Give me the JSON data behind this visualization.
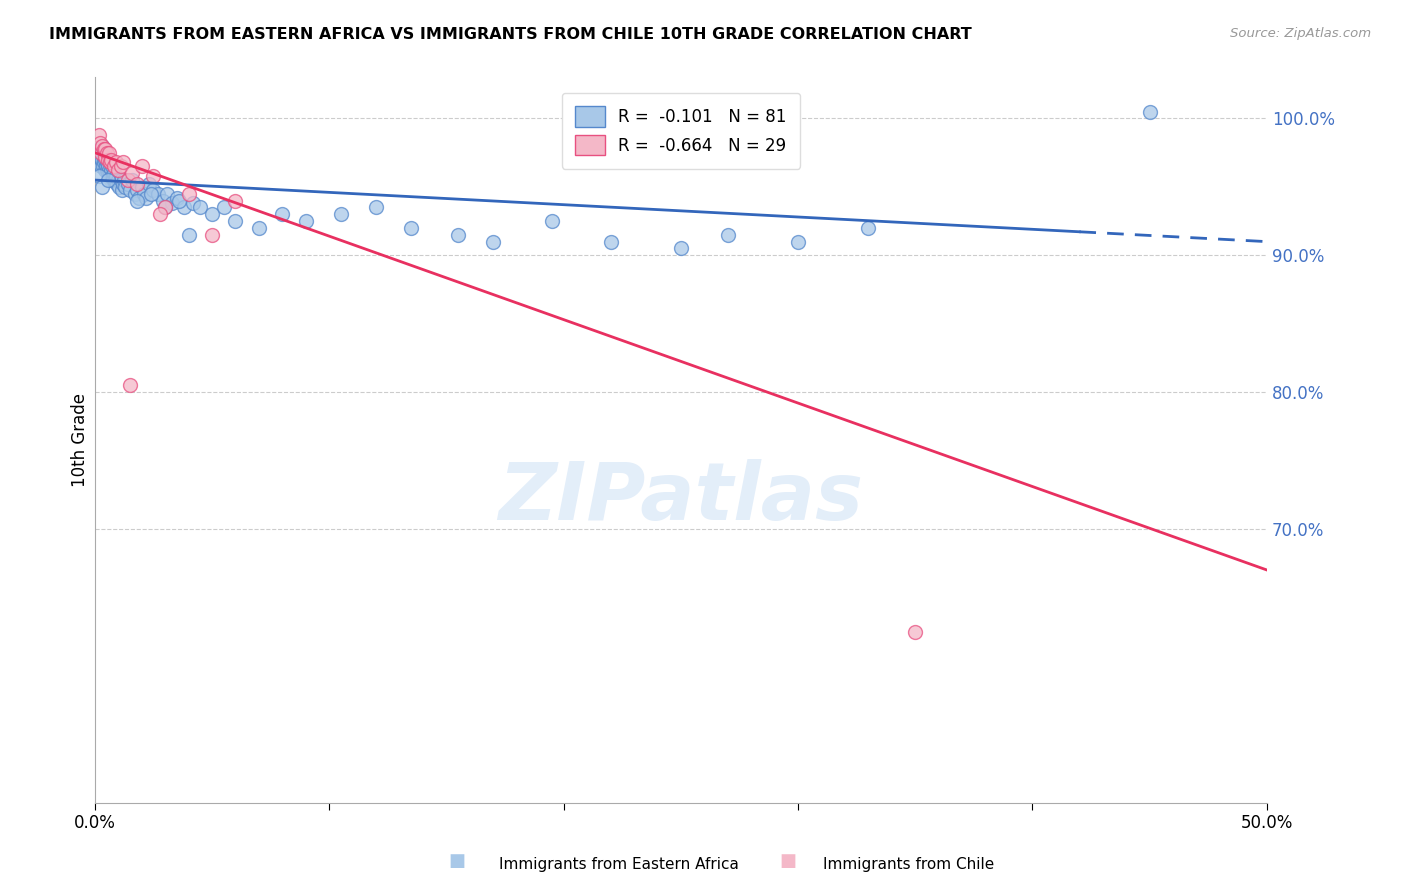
{
  "title": "IMMIGRANTS FROM EASTERN AFRICA VS IMMIGRANTS FROM CHILE 10TH GRADE CORRELATION CHART",
  "source": "Source: ZipAtlas.com",
  "ylabel": "10th Grade",
  "xmin": 0.0,
  "xmax": 50.0,
  "ymin": 50.0,
  "ymax": 103.0,
  "yticks": [
    100.0,
    90.0,
    80.0,
    70.0
  ],
  "ytick_labels": [
    "100.0%",
    "90.0%",
    "80.0%",
    "70.0%"
  ],
  "xticks": [
    0.0,
    10.0,
    20.0,
    30.0,
    40.0,
    50.0
  ],
  "xtick_labels": [
    "0.0%",
    "",
    "",
    "",
    "",
    "50.0%"
  ],
  "blue_color": "#a8c8e8",
  "pink_color": "#f4b8c8",
  "blue_edge_color": "#5588cc",
  "pink_edge_color": "#e85080",
  "blue_line_color": "#3366bb",
  "pink_line_color": "#e83060",
  "legend_blue_r": "-0.101",
  "legend_blue_n": "81",
  "legend_pink_r": "-0.664",
  "legend_pink_n": "29",
  "legend_label_blue": "Immigrants from Eastern Africa",
  "legend_label_pink": "Immigrants from Chile",
  "watermark": "ZIPatlas",
  "blue_line_x0": 0.0,
  "blue_line_y0": 95.5,
  "blue_line_x1": 50.0,
  "blue_line_y1": 91.0,
  "blue_dash_start": 42.0,
  "pink_line_x0": 0.0,
  "pink_line_y0": 97.5,
  "pink_line_x1": 50.0,
  "pink_line_y1": 67.0,
  "blue_scatter_x": [
    0.15,
    0.18,
    0.22,
    0.25,
    0.28,
    0.3,
    0.32,
    0.35,
    0.38,
    0.4,
    0.42,
    0.45,
    0.48,
    0.5,
    0.52,
    0.55,
    0.58,
    0.6,
    0.62,
    0.65,
    0.68,
    0.7,
    0.72,
    0.75,
    0.78,
    0.8,
    0.85,
    0.9,
    0.95,
    1.0,
    1.05,
    1.1,
    1.15,
    1.2,
    1.25,
    1.3,
    1.4,
    1.5,
    1.6,
    1.7,
    1.8,
    1.9,
    2.0,
    2.1,
    2.2,
    2.3,
    2.5,
    2.7,
    2.9,
    3.1,
    3.3,
    3.5,
    3.8,
    4.2,
    4.5,
    5.0,
    5.5,
    6.0,
    7.0,
    8.0,
    9.0,
    10.5,
    12.0,
    13.5,
    15.5,
    17.0,
    19.5,
    22.0,
    25.0,
    27.0,
    30.0,
    33.0,
    0.2,
    0.3,
    0.55,
    1.8,
    2.4,
    3.0,
    3.6,
    4.0,
    45.0
  ],
  "blue_scatter_y": [
    96.8,
    97.5,
    97.2,
    96.5,
    97.8,
    98.0,
    97.0,
    96.5,
    97.2,
    96.8,
    96.2,
    97.0,
    96.5,
    96.8,
    96.2,
    96.5,
    96.0,
    96.2,
    95.8,
    96.0,
    95.5,
    96.2,
    95.8,
    96.5,
    95.5,
    96.0,
    95.5,
    95.8,
    95.2,
    95.5,
    95.0,
    95.5,
    94.8,
    95.2,
    95.5,
    95.0,
    95.2,
    94.8,
    95.5,
    94.5,
    94.8,
    94.2,
    95.0,
    94.5,
    94.2,
    95.2,
    94.8,
    94.5,
    94.0,
    94.5,
    93.8,
    94.2,
    93.5,
    93.8,
    93.5,
    93.0,
    93.5,
    92.5,
    92.0,
    93.0,
    92.5,
    93.0,
    93.5,
    92.0,
    91.5,
    91.0,
    92.5,
    91.0,
    90.5,
    91.5,
    91.0,
    92.0,
    95.8,
    95.0,
    95.5,
    94.0,
    94.5,
    93.5,
    94.0,
    91.5,
    100.5
  ],
  "pink_scatter_x": [
    0.18,
    0.22,
    0.28,
    0.32,
    0.38,
    0.42,
    0.45,
    0.5,
    0.55,
    0.6,
    0.65,
    0.7,
    0.8,
    0.9,
    1.0,
    1.1,
    1.2,
    1.4,
    1.6,
    1.8,
    2.0,
    2.5,
    3.0,
    4.0,
    5.0,
    6.0,
    2.8,
    35.0,
    1.5
  ],
  "pink_scatter_y": [
    98.8,
    98.2,
    97.5,
    98.0,
    97.8,
    97.2,
    97.8,
    97.5,
    97.0,
    97.5,
    96.8,
    97.0,
    96.5,
    96.8,
    96.2,
    96.5,
    96.8,
    95.5,
    96.0,
    95.2,
    96.5,
    95.8,
    93.5,
    94.5,
    91.5,
    94.0,
    93.0,
    62.5,
    80.5
  ]
}
